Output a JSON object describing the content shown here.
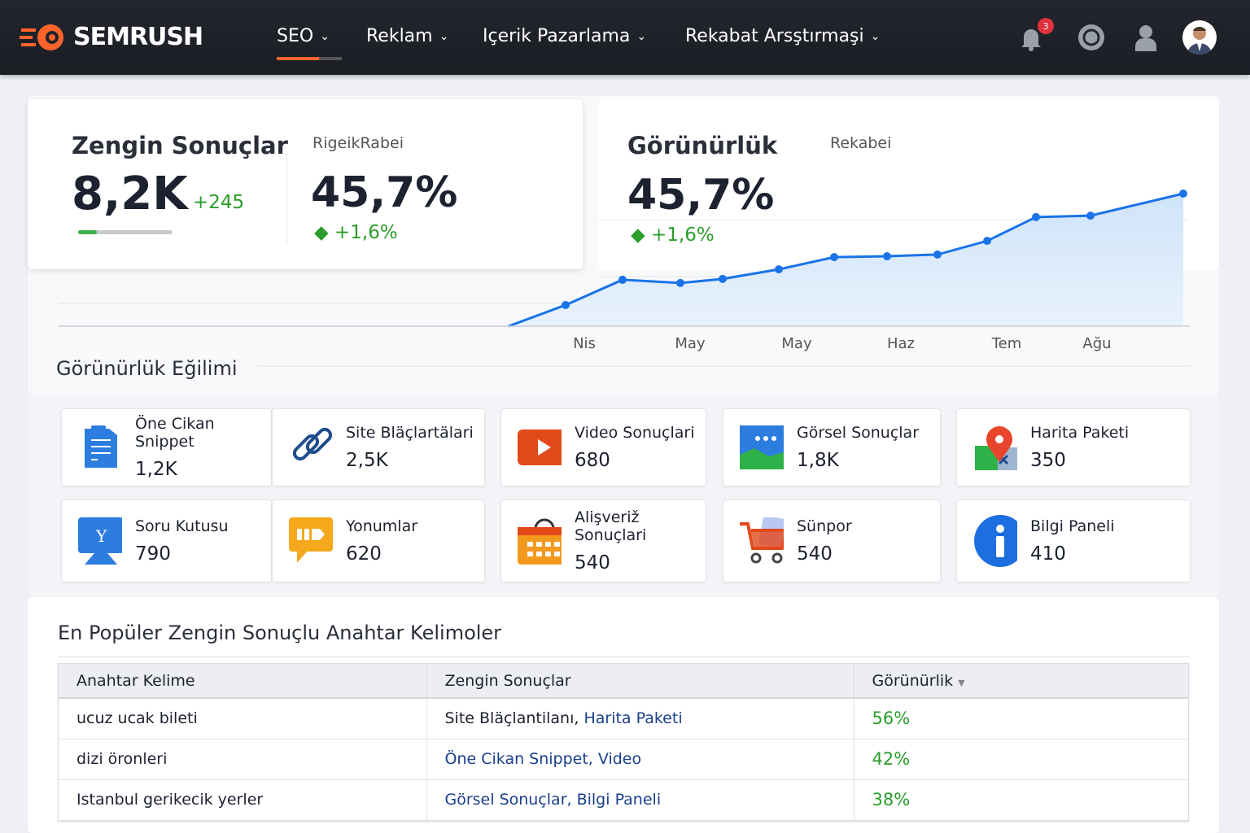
{
  "nav": {
    "brand": "SEMRUSH",
    "items": [
      {
        "label": "SEO",
        "active": true
      },
      {
        "label": "Reklam"
      },
      {
        "label": "Içerik Pazarlama"
      },
      {
        "label": "Rekabat Arsştırmaşi"
      }
    ],
    "notification_count": "3"
  },
  "summary": {
    "title": "Zengin Sonuçlar",
    "value": "8,2K",
    "delta": "+245",
    "progress_pct": 20,
    "competitor_label": "RigeikRabei",
    "competitor_value": "45,7%",
    "competitor_delta": "+1,6%"
  },
  "visibility": {
    "title": "Görünürlük",
    "competitor_label": "Rekabei",
    "value": "45,7%",
    "delta": "+1,6%",
    "trend_title": "Görünürlük Eğilimi"
  },
  "chart_data": {
    "type": "area",
    "x_labels": [
      "Nis",
      "May",
      "May",
      "Haz",
      "Tem",
      "Ağu"
    ],
    "values": [
      0,
      7.3,
      16.0,
      14.9,
      16.3,
      19.6,
      23.8,
      24.1,
      24.7,
      29.4,
      37.6,
      38.1,
      45.7
    ],
    "grid": true,
    "color": "#1a73e8"
  },
  "features": [
    {
      "label": "Öne Cikan Snippet",
      "value": "1,2K",
      "icon": "document-icon"
    },
    {
      "label": "Site Bläçlartälari",
      "value": "2,5K",
      "icon": "link-icon"
    },
    {
      "label": "Video Sonuçlari",
      "value": "680",
      "icon": "video-icon"
    },
    {
      "label": "Görsel Sonuçlar",
      "value": "1,8K",
      "icon": "image-icon"
    },
    {
      "label": "Harita Paketi",
      "value": "350",
      "icon": "map-pin-icon"
    },
    {
      "label": "Soru Kutusu",
      "value": "790",
      "icon": "question-box-icon"
    },
    {
      "label": "Yonumlar",
      "value": "620",
      "icon": "review-icon"
    },
    {
      "label": "Alişveriž Sonuçlari",
      "value": "540",
      "icon": "shopping-basket-icon"
    },
    {
      "label": "Sünpor",
      "value": "540",
      "icon": "cart-icon"
    },
    {
      "label": "Bilgi Paneli",
      "value": "410",
      "icon": "info-icon"
    }
  ],
  "keywords": {
    "title": "En Popüler Zengin Sonuçlu Anahtar Kelimoler",
    "columns": [
      "Anahtar Kelime",
      "Zengin Sonuçlar",
      "Görünürlik"
    ],
    "rows": [
      {
        "keyword": "ucuz ucak bileti",
        "features_a": "Site Bläçlantilanı,",
        "features_b": "Harita Paketi",
        "visibility": "56%"
      },
      {
        "keyword": "dizi öronleri",
        "features_a": "",
        "features_b": "Öne Cikan Snippet, Video",
        "visibility": "42%"
      },
      {
        "keyword": "Istanbul gerikecik yerler",
        "features_a": "",
        "features_b": "Görsel Sonuçlar, Bilgi Paneli",
        "visibility": "38%"
      }
    ]
  }
}
